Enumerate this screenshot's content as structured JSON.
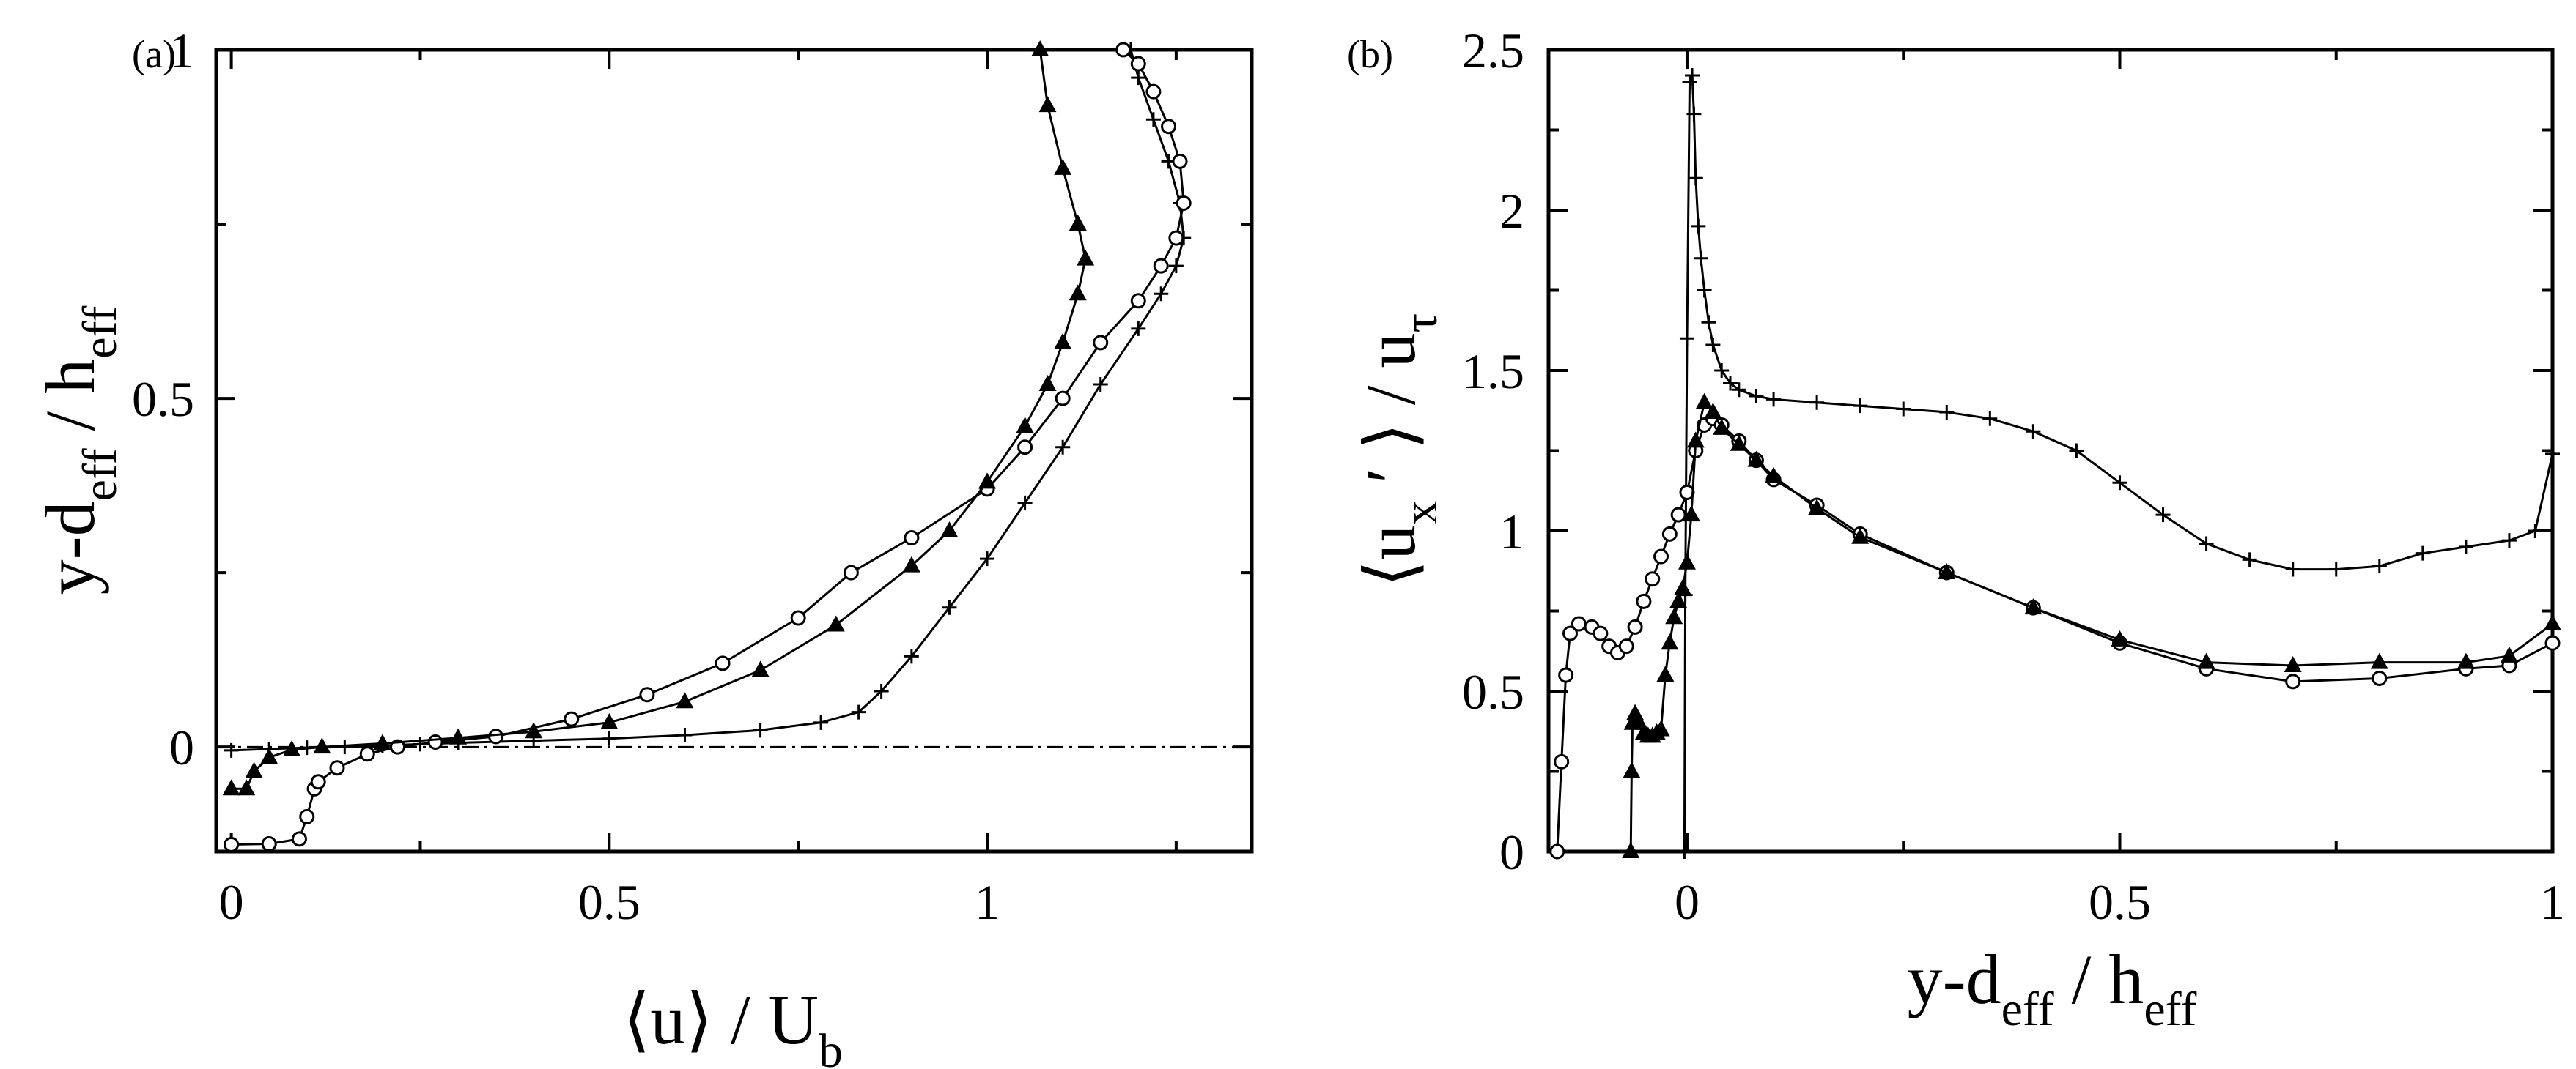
{
  "chart_data": [
    {
      "type": "line",
      "panel_label": "(a)",
      "xlabel": "⟨u⟩ / U_b",
      "ylabel": "y-d_eff / h_eff",
      "xlim": [
        -0.02,
        1.35
      ],
      "ylim": [
        -0.15,
        1.0
      ],
      "xticks": [
        0,
        0.5,
        1
      ],
      "xtick_labels": [
        "0",
        "0.5",
        "1"
      ],
      "yticks": [
        0,
        0.5,
        1
      ],
      "ytick_labels": [
        "0",
        "0.5",
        "1"
      ],
      "grid": false,
      "reference_line": {
        "style": "dash-dot",
        "y": 0
      },
      "series": [
        {
          "marker": "plus",
          "x": [
            0.0,
            0.05,
            0.1,
            0.15,
            0.2,
            0.25,
            0.3,
            0.4,
            0.5,
            0.6,
            0.7,
            0.78,
            0.83,
            0.86,
            0.9,
            0.95,
            1.0,
            1.05,
            1.1,
            1.15,
            1.2,
            1.23,
            1.25,
            1.26,
            1.255,
            1.24,
            1.22,
            1.2,
            1.19
          ],
          "y": [
            -0.005,
            -0.003,
            -0.001,
            0.0,
            0.002,
            0.004,
            0.006,
            0.009,
            0.012,
            0.017,
            0.024,
            0.035,
            0.05,
            0.08,
            0.13,
            0.2,
            0.27,
            0.35,
            0.43,
            0.52,
            0.6,
            0.65,
            0.69,
            0.73,
            0.78,
            0.84,
            0.9,
            0.96,
            1.0
          ]
        },
        {
          "marker": "circle",
          "x": [
            0.0,
            0.05,
            0.09,
            0.1,
            0.11,
            0.115,
            0.14,
            0.18,
            0.22,
            0.27,
            0.35,
            0.45,
            0.55,
            0.65,
            0.75,
            0.82,
            0.9,
            1.0,
            1.05,
            1.1,
            1.15,
            1.2,
            1.23,
            1.25,
            1.26,
            1.255,
            1.24,
            1.22,
            1.2,
            1.18
          ],
          "y": [
            -0.14,
            -0.139,
            -0.132,
            -0.1,
            -0.06,
            -0.05,
            -0.03,
            -0.01,
            0.0,
            0.007,
            0.015,
            0.04,
            0.075,
            0.12,
            0.185,
            0.25,
            0.3,
            0.37,
            0.43,
            0.5,
            0.58,
            0.64,
            0.69,
            0.73,
            0.78,
            0.84,
            0.89,
            0.94,
            0.98,
            1.0
          ]
        },
        {
          "marker": "triangle",
          "x": [
            0.0,
            0.02,
            0.03,
            0.05,
            0.08,
            0.12,
            0.2,
            0.3,
            0.4,
            0.5,
            0.6,
            0.7,
            0.8,
            0.9,
            0.95,
            1.0,
            1.05,
            1.08,
            1.1,
            1.12,
            1.13,
            1.12,
            1.1,
            1.08,
            1.07
          ],
          "y": [
            -0.06,
            -0.06,
            -0.035,
            -0.015,
            -0.004,
            0.0,
            0.005,
            0.013,
            0.022,
            0.035,
            0.065,
            0.11,
            0.175,
            0.26,
            0.31,
            0.38,
            0.46,
            0.52,
            0.58,
            0.65,
            0.7,
            0.75,
            0.83,
            0.92,
            1.0
          ]
        }
      ]
    },
    {
      "type": "line",
      "panel_label": "(b)",
      "xlabel": "y-d_eff / h_eff",
      "ylabel": "⟨u_x′⟩ / u_τ",
      "xlim": [
        -0.16,
        1.0
      ],
      "ylim": [
        0,
        2.5
      ],
      "xticks": [
        0,
        0.5,
        1
      ],
      "xtick_labels": [
        "0",
        "0.5",
        "1"
      ],
      "yticks": [
        0,
        0.5,
        1,
        1.5,
        2,
        2.5
      ],
      "ytick_labels": [
        "0",
        "0.5",
        "1",
        "1.5",
        "2",
        "2.5"
      ],
      "grid": false,
      "series": [
        {
          "marker": "plus",
          "x": [
            -0.003,
            -0.002,
            0.0,
            0.003,
            0.006,
            0.008,
            0.01,
            0.013,
            0.016,
            0.02,
            0.025,
            0.03,
            0.04,
            0.05,
            0.06,
            0.08,
            0.1,
            0.15,
            0.2,
            0.25,
            0.3,
            0.35,
            0.4,
            0.45,
            0.5,
            0.55,
            0.6,
            0.65,
            0.7,
            0.75,
            0.8,
            0.85,
            0.9,
            0.95,
            0.98,
            1.0
          ],
          "y": [
            0.0,
            0.8,
            1.6,
            2.4,
            2.42,
            2.3,
            2.1,
            1.95,
            1.85,
            1.75,
            1.65,
            1.58,
            1.5,
            1.46,
            1.44,
            1.42,
            1.41,
            1.4,
            1.39,
            1.38,
            1.37,
            1.35,
            1.31,
            1.25,
            1.15,
            1.05,
            0.96,
            0.91,
            0.88,
            0.88,
            0.89,
            0.93,
            0.95,
            0.97,
            1.0,
            1.24
          ]
        },
        {
          "marker": "circle",
          "x": [
            -0.15,
            -0.145,
            -0.14,
            -0.135,
            -0.125,
            -0.11,
            -0.1,
            -0.09,
            -0.08,
            -0.07,
            -0.06,
            -0.05,
            -0.04,
            -0.03,
            -0.02,
            -0.01,
            0.0,
            0.01,
            0.02,
            0.03,
            0.04,
            0.06,
            0.08,
            0.1,
            0.15,
            0.2,
            0.3,
            0.4,
            0.5,
            0.6,
            0.7,
            0.8,
            0.9,
            0.95,
            1.0
          ],
          "y": [
            0.0,
            0.28,
            0.55,
            0.68,
            0.71,
            0.7,
            0.68,
            0.64,
            0.62,
            0.64,
            0.7,
            0.78,
            0.85,
            0.92,
            0.99,
            1.05,
            1.12,
            1.25,
            1.33,
            1.35,
            1.33,
            1.28,
            1.22,
            1.16,
            1.08,
            0.99,
            0.87,
            0.76,
            0.65,
            0.57,
            0.53,
            0.54,
            0.57,
            0.58,
            0.65
          ]
        },
        {
          "marker": "triangle",
          "x": [
            -0.065,
            -0.064,
            -0.063,
            -0.06,
            -0.055,
            -0.05,
            -0.045,
            -0.04,
            -0.035,
            -0.03,
            -0.025,
            -0.02,
            -0.015,
            -0.01,
            -0.005,
            0.0,
            0.005,
            0.01,
            0.02,
            0.03,
            0.04,
            0.06,
            0.08,
            0.1,
            0.15,
            0.2,
            0.3,
            0.4,
            0.5,
            0.6,
            0.7,
            0.8,
            0.9,
            0.95,
            1.0
          ],
          "y": [
            0.0,
            0.25,
            0.4,
            0.43,
            0.4,
            0.37,
            0.36,
            0.36,
            0.37,
            0.38,
            0.55,
            0.65,
            0.73,
            0.78,
            0.82,
            0.9,
            1.05,
            1.28,
            1.4,
            1.37,
            1.32,
            1.27,
            1.22,
            1.17,
            1.07,
            0.98,
            0.87,
            0.76,
            0.66,
            0.59,
            0.58,
            0.59,
            0.59,
            0.61,
            0.71
          ]
        }
      ]
    }
  ]
}
